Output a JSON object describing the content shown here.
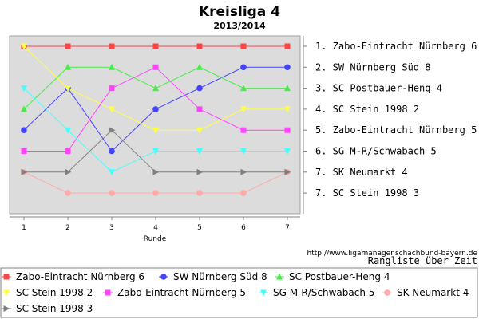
{
  "chart_data": {
    "type": "line",
    "title": "Kreisliga 4",
    "subtitle": "2013/2014",
    "xlabel": "Runde",
    "x": [
      1,
      2,
      3,
      4,
      5,
      6,
      7
    ],
    "ylim": [
      8,
      1
    ],
    "y_inverted": true,
    "grid": false,
    "legend_position": "bottom",
    "standings_labels": [
      "1. Zabo-Eintracht Nürnberg 6",
      "2. SW Nürnberg Süd 8",
      "3. SC Postbauer-Heng 4",
      "4. SC Stein 1998 2",
      "5. Zabo-Eintracht Nürnberg 5",
      "6. SG M-R/Schwabach 5",
      "7. SK Neumarkt 4",
      "7. SC Stein 1998 3"
    ],
    "series": [
      {
        "name": "Zabo-Eintracht Nürnberg 6",
        "color": "#ff4444",
        "marker": "square",
        "values": [
          1,
          1,
          1,
          1,
          1,
          1,
          1
        ]
      },
      {
        "name": "SW Nürnberg Süd 8",
        "color": "#4444ff",
        "marker": "circle",
        "values": [
          5,
          3,
          6,
          4,
          3,
          2,
          2
        ]
      },
      {
        "name": "SC Postbauer-Heng 4",
        "color": "#44ee44",
        "marker": "triangle-up",
        "values": [
          4,
          2,
          2,
          3,
          2,
          3,
          3
        ]
      },
      {
        "name": "SC Stein 1998 2",
        "color": "#ffff44",
        "marker": "triangle-down",
        "values": [
          1,
          3,
          4,
          5,
          5,
          4,
          4
        ]
      },
      {
        "name": "Zabo-Eintracht Nürnberg 5",
        "color": "#ff44ff",
        "marker": "square",
        "values": [
          6,
          6,
          3,
          2,
          4,
          5,
          5
        ]
      },
      {
        "name": "SG M-R/Schwabach 5",
        "color": "#44ffff",
        "marker": "triangle-down",
        "values": [
          3,
          5,
          7,
          6,
          6,
          6,
          6
        ]
      },
      {
        "name": "SK Neumarkt 4",
        "color": "#ffaaaa",
        "marker": "circle",
        "values": [
          7,
          8,
          8,
          8,
          8,
          8,
          7
        ]
      },
      {
        "name": "SC Stein 1998 3",
        "color": "#808080",
        "marker": "triangle-right",
        "values": [
          7,
          7,
          5,
          7,
          7,
          7,
          7
        ]
      }
    ]
  },
  "footer": {
    "url": "http://www.ligamanager.schachbund-bayern.de",
    "caption": "Rangliste über Zeit"
  }
}
